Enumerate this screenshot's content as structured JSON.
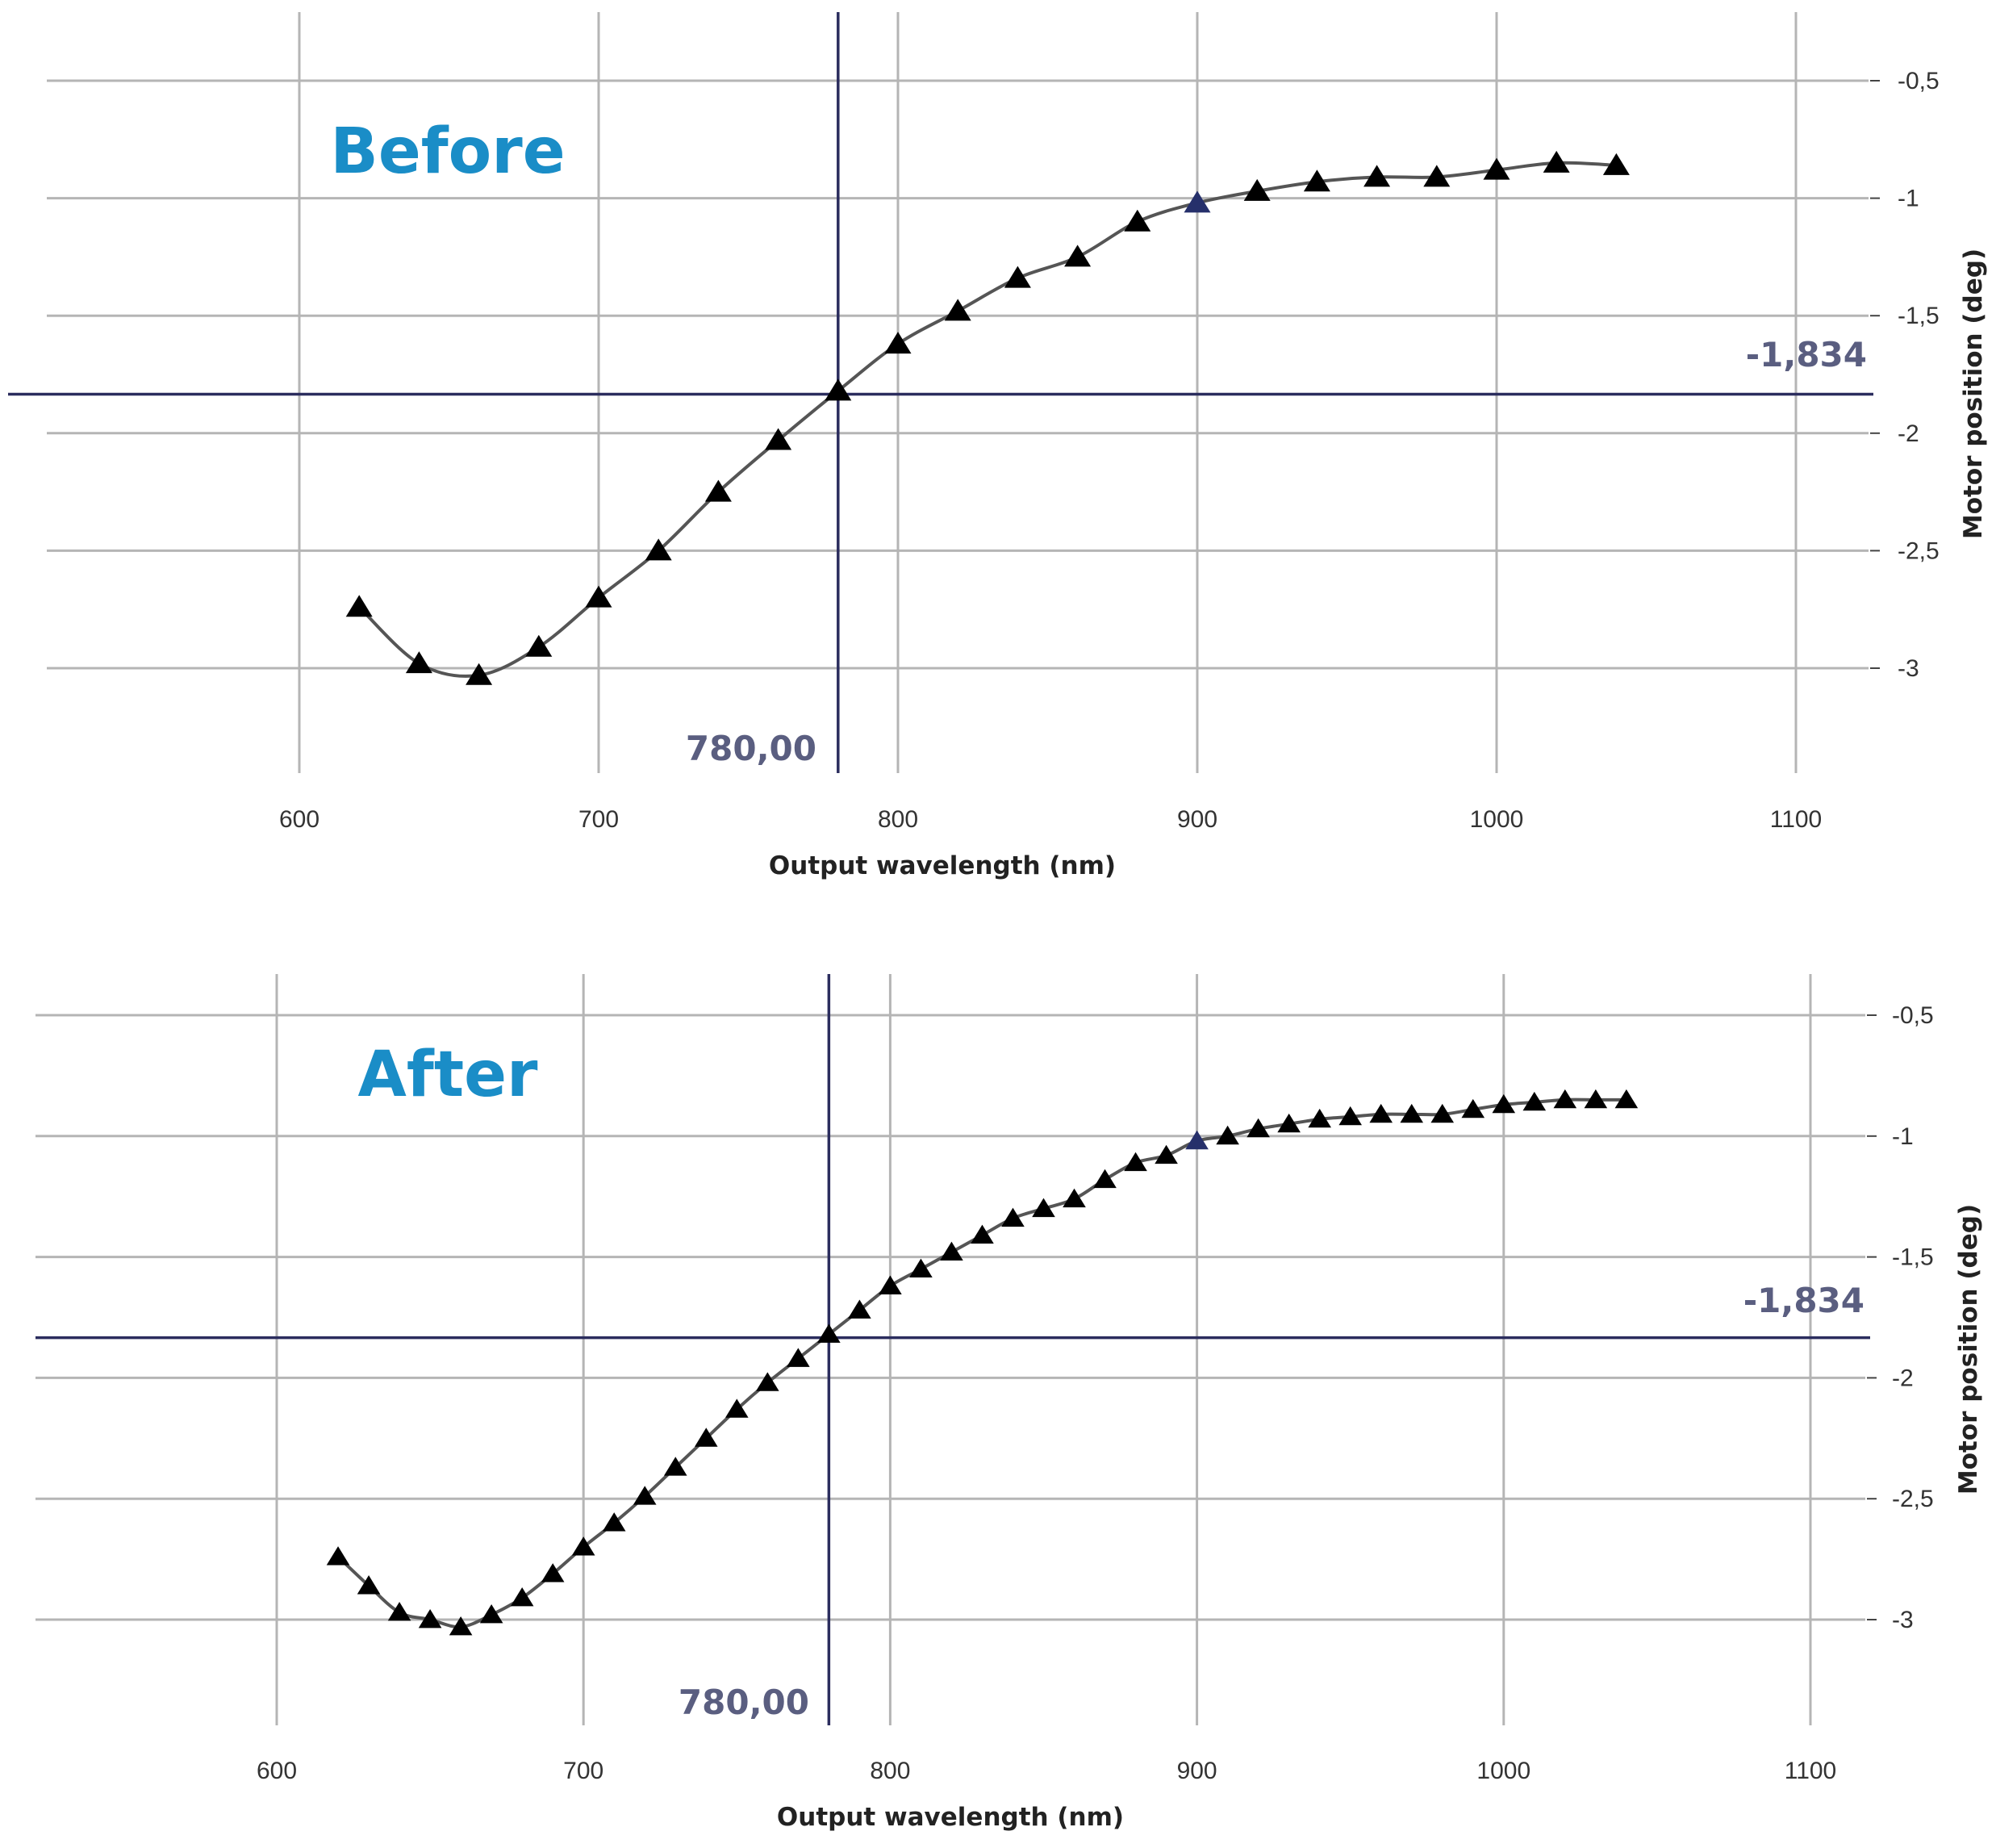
{
  "colors": {
    "panel_label": "#1a8dc7",
    "cursor": "#2b2d5e",
    "cursor_label": "#5a5e80",
    "marker": "#000000",
    "marker_highlight": "#26306b",
    "curve": "#555555"
  },
  "panels": [
    {
      "label": "Before",
      "xlabel": "Output wavelength (nm)",
      "ylabel": "Motor position (deg)",
      "cursor_x_label": "780,00",
      "cursor_y_label": "-1,834"
    },
    {
      "label": "After",
      "xlabel": "Output wavelength (nm)",
      "ylabel": "Motor position (deg)",
      "cursor_x_label": "780,00",
      "cursor_y_label": "-1,834"
    }
  ],
  "chart_data": [
    {
      "type": "line",
      "title": "Before",
      "xlabel": "Output wavelength (nm)",
      "ylabel": "Motor position (deg)",
      "xlim": [
        520,
        1130
      ],
      "ylim": [
        -3.45,
        -0.35
      ],
      "x_ticks": [
        600,
        700,
        800,
        900,
        1000,
        1100
      ],
      "x_tick_labels": [
        "600",
        "700",
        "800",
        "900",
        "1000",
        "1100"
      ],
      "y_ticks": [
        -0.5,
        -1,
        -1.5,
        -2,
        -2.5,
        -3
      ],
      "y_tick_labels": [
        "-0,5",
        "-1",
        "-1,5",
        "-2",
        "-2,5",
        "-3"
      ],
      "grid": true,
      "legend": "none",
      "marker": "triangle",
      "cursor": {
        "x": 780,
        "y": -1.834
      },
      "highlighted_x": 900,
      "x": [
        620,
        640,
        660,
        680,
        700,
        720,
        740,
        760,
        780,
        800,
        820,
        840,
        860,
        880,
        900,
        920,
        940,
        960,
        980,
        1000,
        1020,
        1040
      ],
      "y": [
        -2.74,
        -2.98,
        -3.03,
        -2.91,
        -2.7,
        -2.5,
        -2.25,
        -2.03,
        -1.82,
        -1.62,
        -1.48,
        -1.34,
        -1.25,
        -1.1,
        -1.02,
        -0.97,
        -0.93,
        -0.91,
        -0.91,
        -0.88,
        -0.85,
        -0.86
      ]
    },
    {
      "type": "line",
      "title": "After",
      "xlabel": "Output wavelength (nm)",
      "ylabel": "Motor position (deg)",
      "xlim": [
        520,
        1130
      ],
      "ylim": [
        -3.45,
        -0.35
      ],
      "x_ticks": [
        600,
        700,
        800,
        900,
        1000,
        1100
      ],
      "x_tick_labels": [
        "600",
        "700",
        "800",
        "900",
        "1000",
        "1100"
      ],
      "y_ticks": [
        -0.5,
        -1,
        -1.5,
        -2,
        -2.5,
        -3
      ],
      "y_tick_labels": [
        "-0,5",
        "-1",
        "-1,5",
        "-2",
        "-2,5",
        "-3"
      ],
      "grid": true,
      "legend": "none",
      "marker": "triangle",
      "cursor": {
        "x": 780,
        "y": -1.834
      },
      "highlighted_x": 900,
      "x": [
        620,
        630,
        640,
        650,
        660,
        670,
        680,
        690,
        700,
        710,
        720,
        730,
        740,
        750,
        760,
        770,
        780,
        790,
        800,
        810,
        820,
        830,
        840,
        850,
        860,
        870,
        880,
        890,
        900,
        910,
        920,
        930,
        940,
        950,
        960,
        970,
        980,
        990,
        1000,
        1010,
        1020,
        1030,
        1040
      ],
      "y": [
        -2.74,
        -2.86,
        -2.97,
        -3.0,
        -3.03,
        -2.98,
        -2.91,
        -2.81,
        -2.7,
        -2.6,
        -2.49,
        -2.37,
        -2.25,
        -2.13,
        -2.02,
        -1.92,
        -1.82,
        -1.72,
        -1.62,
        -1.55,
        -1.48,
        -1.41,
        -1.34,
        -1.3,
        -1.26,
        -1.18,
        -1.11,
        -1.08,
        -1.02,
        -1.0,
        -0.97,
        -0.95,
        -0.93,
        -0.92,
        -0.91,
        -0.91,
        -0.91,
        -0.89,
        -0.87,
        -0.86,
        -0.85,
        -0.85,
        -0.85
      ]
    }
  ]
}
